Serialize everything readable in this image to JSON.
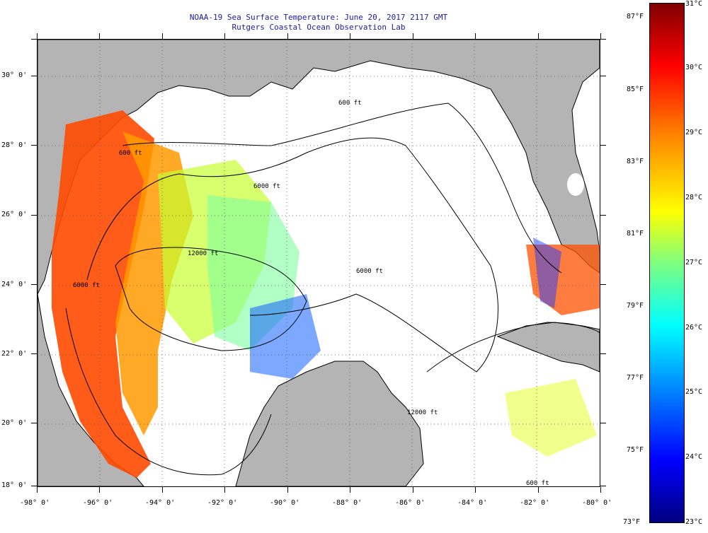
{
  "title": {
    "line1": "NOAA-19 Sea Surface Temperature:  June 20, 2017 2117 GMT",
    "line2": "Rutgers Coastal Ocean Observation Lab"
  },
  "map": {
    "lon_labels": [
      "-98° 0'",
      "-96° 0'",
      "-94° 0'",
      "-92° 0'",
      "-90° 0'",
      "-88° 0'",
      "-86° 0'",
      "-84° 0'",
      "-82° 0'",
      "-80° 0'"
    ],
    "lat_labels": [
      "30° 0'",
      "28° 0'",
      "26° 0'",
      "24° 0'",
      "22° 0'",
      "20° 0'",
      "18° 0'"
    ],
    "contour_labels": [
      "600 ft",
      "6000 ft",
      "12000 ft",
      "6000 ft",
      "600 ft",
      "6000 ft",
      "12000 ft",
      "600 ft"
    ],
    "land_color": "#b4b4b4",
    "cloud_color": "#ffffff"
  },
  "colorbar": {
    "fahrenheit": [
      "87°F",
      "85°F",
      "83°F",
      "81°F",
      "79°F",
      "77°F",
      "75°F",
      "73°F"
    ],
    "celsius": [
      "31°C",
      "30°C",
      "29°C",
      "28°C",
      "27°C",
      "26°C",
      "25°C",
      "24°C",
      "23°C"
    ],
    "range_c": [
      23,
      31
    ],
    "range_f": [
      73,
      87
    ]
  }
}
